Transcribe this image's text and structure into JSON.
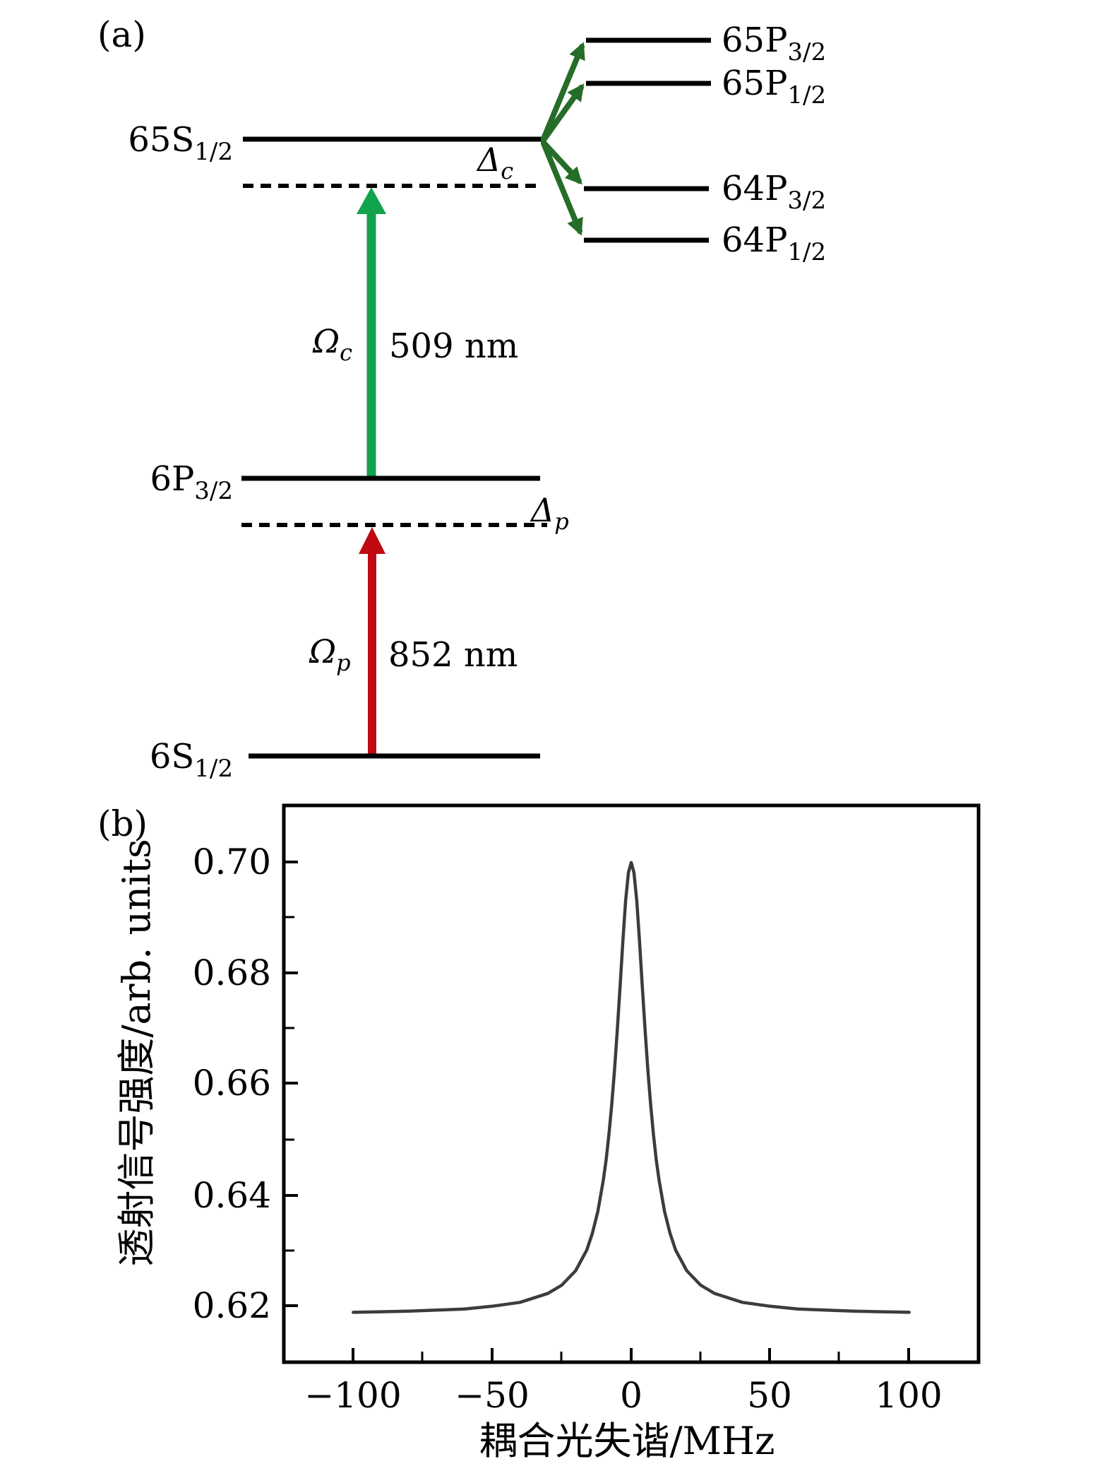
{
  "figure": {
    "panel_a_label": "(a)",
    "panel_b_label": "(b)"
  },
  "panel_a": {
    "levels": {
      "s65": {
        "main": "65S",
        "sub": "1/2"
      },
      "p65_32": {
        "main": "65P",
        "sub": "3/2"
      },
      "p65_12": {
        "main": "65P",
        "sub": "1/2"
      },
      "p64_32": {
        "main": "64P",
        "sub": "3/2"
      },
      "p64_12": {
        "main": "64P",
        "sub": "1/2"
      },
      "p6_32": {
        "main": "6P",
        "sub": "3/2"
      },
      "s6": {
        "main": "6S",
        "sub": "1/2"
      }
    },
    "detuning_coupling": {
      "main": "Δ",
      "sub": "c"
    },
    "detuning_probe": {
      "main": "Δ",
      "sub": "p"
    },
    "rabi_coupling": {
      "main": "Ω",
      "sub": "c"
    },
    "rabi_probe": {
      "main": "Ω",
      "sub": "p"
    },
    "wavelength_coupling": "509 nm",
    "wavelength_probe": "852 nm",
    "colors": {
      "coupling_beam": "#11a34d",
      "probe_beam": "#c00a12",
      "decay_arrows": "#256d28",
      "levels": "#000000"
    }
  },
  "chart_data": {
    "type": "line",
    "title": "",
    "xlabel": "耦合光失谐/MHz",
    "ylabel": "透射信号强度/arb. units",
    "xlim": [
      -125,
      125
    ],
    "ylim": [
      0.61,
      0.71
    ],
    "xticks": [
      -100,
      -50,
      0,
      50,
      100
    ],
    "yticks": [
      0.62,
      0.64,
      0.66,
      0.68,
      0.7
    ],
    "xtick_labels": [
      "−100",
      "−50",
      "0",
      "50",
      "100"
    ],
    "ytick_labels": [
      "0.62",
      "0.64",
      "0.66",
      "0.68",
      "0.70"
    ],
    "minor_tick_step_x": 25,
    "minor_tick_step_y": 0.01,
    "grid": false,
    "frame": "box",
    "line_color": "#3c3c3c",
    "peak": {
      "center_MHz": 0,
      "max": 0.7,
      "baseline": 0.6185,
      "fwhm_MHz": 13
    },
    "series": [
      {
        "x": [
          -100,
          -90,
          -80,
          -70,
          -60,
          -50,
          -40,
          -30,
          -25,
          -20,
          -16,
          -14,
          -12,
          -10,
          -9,
          -8,
          -7,
          -6,
          -5,
          -4,
          -3,
          -2,
          -1,
          0,
          1,
          2,
          3,
          4,
          5,
          6,
          7,
          8,
          9,
          10,
          12,
          14,
          16,
          20,
          25,
          30,
          40,
          50,
          60,
          70,
          80,
          90,
          100
        ],
        "y": [
          0.6188,
          0.6189,
          0.619,
          0.6192,
          0.6194,
          0.6199,
          0.6206,
          0.6222,
          0.6237,
          0.6263,
          0.63,
          0.633,
          0.637,
          0.6427,
          0.6464,
          0.6509,
          0.6562,
          0.6625,
          0.6697,
          0.6776,
          0.6857,
          0.693,
          0.6981,
          0.6999,
          0.6981,
          0.693,
          0.6857,
          0.6776,
          0.6697,
          0.6625,
          0.6562,
          0.6509,
          0.6464,
          0.6427,
          0.637,
          0.633,
          0.63,
          0.6263,
          0.6237,
          0.6222,
          0.6206,
          0.6199,
          0.6194,
          0.6192,
          0.619,
          0.6189,
          0.6188
        ]
      }
    ]
  }
}
